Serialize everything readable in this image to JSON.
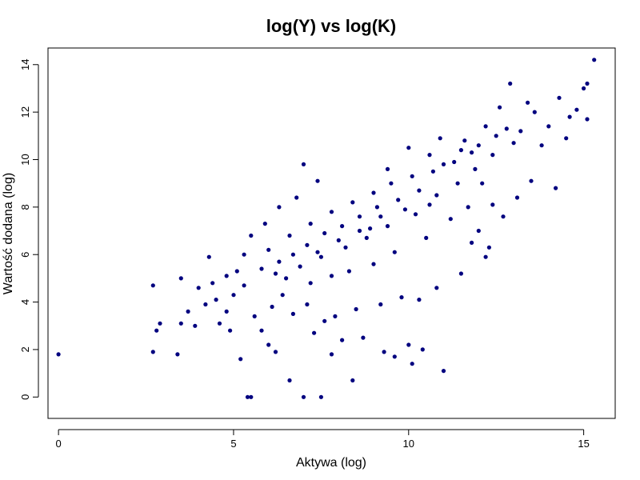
{
  "chart_data": {
    "type": "scatter",
    "title": "log(Y) vs log(K)",
    "xlabel": "Aktywa (log)",
    "ylabel": "Wartość dodana (log)",
    "xlim": [
      -0.3,
      15.9
    ],
    "ylim": [
      -0.9,
      14.7
    ],
    "xticks": [
      0,
      5,
      10,
      15
    ],
    "yticks": [
      0,
      2,
      4,
      6,
      8,
      10,
      12,
      14
    ],
    "grid": false,
    "legend": "none",
    "point_color": "#00007f",
    "series": [
      {
        "points": [
          [
            0.0,
            1.8
          ],
          [
            2.7,
            4.7
          ],
          [
            2.7,
            1.9
          ],
          [
            2.8,
            2.8
          ],
          [
            2.9,
            3.1
          ],
          [
            3.4,
            1.8
          ],
          [
            3.5,
            3.1
          ],
          [
            3.7,
            3.6
          ],
          [
            3.9,
            3.0
          ],
          [
            3.5,
            5.0
          ],
          [
            4.0,
            4.6
          ],
          [
            4.2,
            3.9
          ],
          [
            4.3,
            5.9
          ],
          [
            4.6,
            3.1
          ],
          [
            4.9,
            2.8
          ],
          [
            5.2,
            1.6
          ],
          [
            5.4,
            0.0
          ],
          [
            5.5,
            0.0
          ],
          [
            5.0,
            4.3
          ],
          [
            4.8,
            3.6
          ],
          [
            4.5,
            4.1
          ],
          [
            4.4,
            4.8
          ],
          [
            4.8,
            5.1
          ],
          [
            5.1,
            5.3
          ],
          [
            5.3,
            4.7
          ],
          [
            5.6,
            3.4
          ],
          [
            5.8,
            2.8
          ],
          [
            6.0,
            2.2
          ],
          [
            6.2,
            1.9
          ],
          [
            6.6,
            0.7
          ],
          [
            7.0,
            0.0
          ],
          [
            7.5,
            0.0
          ],
          [
            7.3,
            2.7
          ],
          [
            7.6,
            3.2
          ],
          [
            7.8,
            1.8
          ],
          [
            8.1,
            2.4
          ],
          [
            8.4,
            0.7
          ],
          [
            8.7,
            2.5
          ],
          [
            9.3,
            1.9
          ],
          [
            9.6,
            1.7
          ],
          [
            10.0,
            2.2
          ],
          [
            10.4,
            2.0
          ],
          [
            10.1,
            1.4
          ],
          [
            11.0,
            1.1
          ],
          [
            6.4,
            4.3
          ],
          [
            6.1,
            3.8
          ],
          [
            6.7,
            3.5
          ],
          [
            7.1,
            3.9
          ],
          [
            7.9,
            3.4
          ],
          [
            8.5,
            3.7
          ],
          [
            9.2,
            3.9
          ],
          [
            9.8,
            4.2
          ],
          [
            10.3,
            4.1
          ],
          [
            10.8,
            4.6
          ],
          [
            11.5,
            5.2
          ],
          [
            12.2,
            5.9
          ],
          [
            12.3,
            6.3
          ],
          [
            11.8,
            6.5
          ],
          [
            12.0,
            7.0
          ],
          [
            12.7,
            7.6
          ],
          [
            12.4,
            8.1
          ],
          [
            13.1,
            8.4
          ],
          [
            13.5,
            9.1
          ],
          [
            14.2,
            8.8
          ],
          [
            13.8,
            10.6
          ],
          [
            14.5,
            10.9
          ],
          [
            15.1,
            11.7
          ],
          [
            15.0,
            13.0
          ],
          [
            15.3,
            14.2
          ],
          [
            15.1,
            13.2
          ],
          [
            14.8,
            12.1
          ],
          [
            14.3,
            12.6
          ],
          [
            14.6,
            11.8
          ],
          [
            14.0,
            11.4
          ],
          [
            13.6,
            12.0
          ],
          [
            13.2,
            11.2
          ],
          [
            12.9,
            13.2
          ],
          [
            13.4,
            12.4
          ],
          [
            12.6,
            12.2
          ],
          [
            12.2,
            11.4
          ],
          [
            12.0,
            10.6
          ],
          [
            11.5,
            10.4
          ],
          [
            11.0,
            9.8
          ],
          [
            10.6,
            10.2
          ],
          [
            10.0,
            10.5
          ],
          [
            9.4,
            9.6
          ],
          [
            7.0,
            9.8
          ],
          [
            7.4,
            9.1
          ],
          [
            6.8,
            8.4
          ],
          [
            6.3,
            8.0
          ],
          [
            5.9,
            7.3
          ],
          [
            5.5,
            6.8
          ],
          [
            5.3,
            6.0
          ],
          [
            5.8,
            5.4
          ],
          [
            6.5,
            5.0
          ],
          [
            7.2,
            4.8
          ],
          [
            7.8,
            5.1
          ],
          [
            8.3,
            5.3
          ],
          [
            9.0,
            5.6
          ],
          [
            9.6,
            6.1
          ],
          [
            10.5,
            6.7
          ],
          [
            11.2,
            7.5
          ],
          [
            11.7,
            8.0
          ],
          [
            12.1,
            9.0
          ],
          [
            11.9,
            9.6
          ],
          [
            11.4,
            9.0
          ],
          [
            10.8,
            8.5
          ],
          [
            10.3,
            8.7
          ],
          [
            9.7,
            8.3
          ],
          [
            9.1,
            8.0
          ],
          [
            8.6,
            7.6
          ],
          [
            8.1,
            7.2
          ],
          [
            7.6,
            6.9
          ],
          [
            7.1,
            6.4
          ],
          [
            6.7,
            6.0
          ],
          [
            6.3,
            5.7
          ],
          [
            6.0,
            6.2
          ],
          [
            6.6,
            6.8
          ],
          [
            7.2,
            7.3
          ],
          [
            7.8,
            7.8
          ],
          [
            8.4,
            8.2
          ],
          [
            9.0,
            8.6
          ],
          [
            9.5,
            9.0
          ],
          [
            10.1,
            9.3
          ],
          [
            10.7,
            9.5
          ],
          [
            11.3,
            9.9
          ],
          [
            11.8,
            10.3
          ],
          [
            12.5,
            11.0
          ],
          [
            12.8,
            11.3
          ],
          [
            13.0,
            10.7
          ],
          [
            12.4,
            10.2
          ],
          [
            11.6,
            10.8
          ],
          [
            10.9,
            10.9
          ],
          [
            10.2,
            7.7
          ],
          [
            9.4,
            7.2
          ],
          [
            8.8,
            6.7
          ],
          [
            8.2,
            6.3
          ],
          [
            7.5,
            5.9
          ],
          [
            6.9,
            5.5
          ],
          [
            6.2,
            5.2
          ],
          [
            8.9,
            7.1
          ],
          [
            9.9,
            7.9
          ],
          [
            10.6,
            8.1
          ],
          [
            7.4,
            6.1
          ],
          [
            8.0,
            6.6
          ],
          [
            8.6,
            7.0
          ],
          [
            9.2,
            7.6
          ]
        ]
      }
    ]
  }
}
